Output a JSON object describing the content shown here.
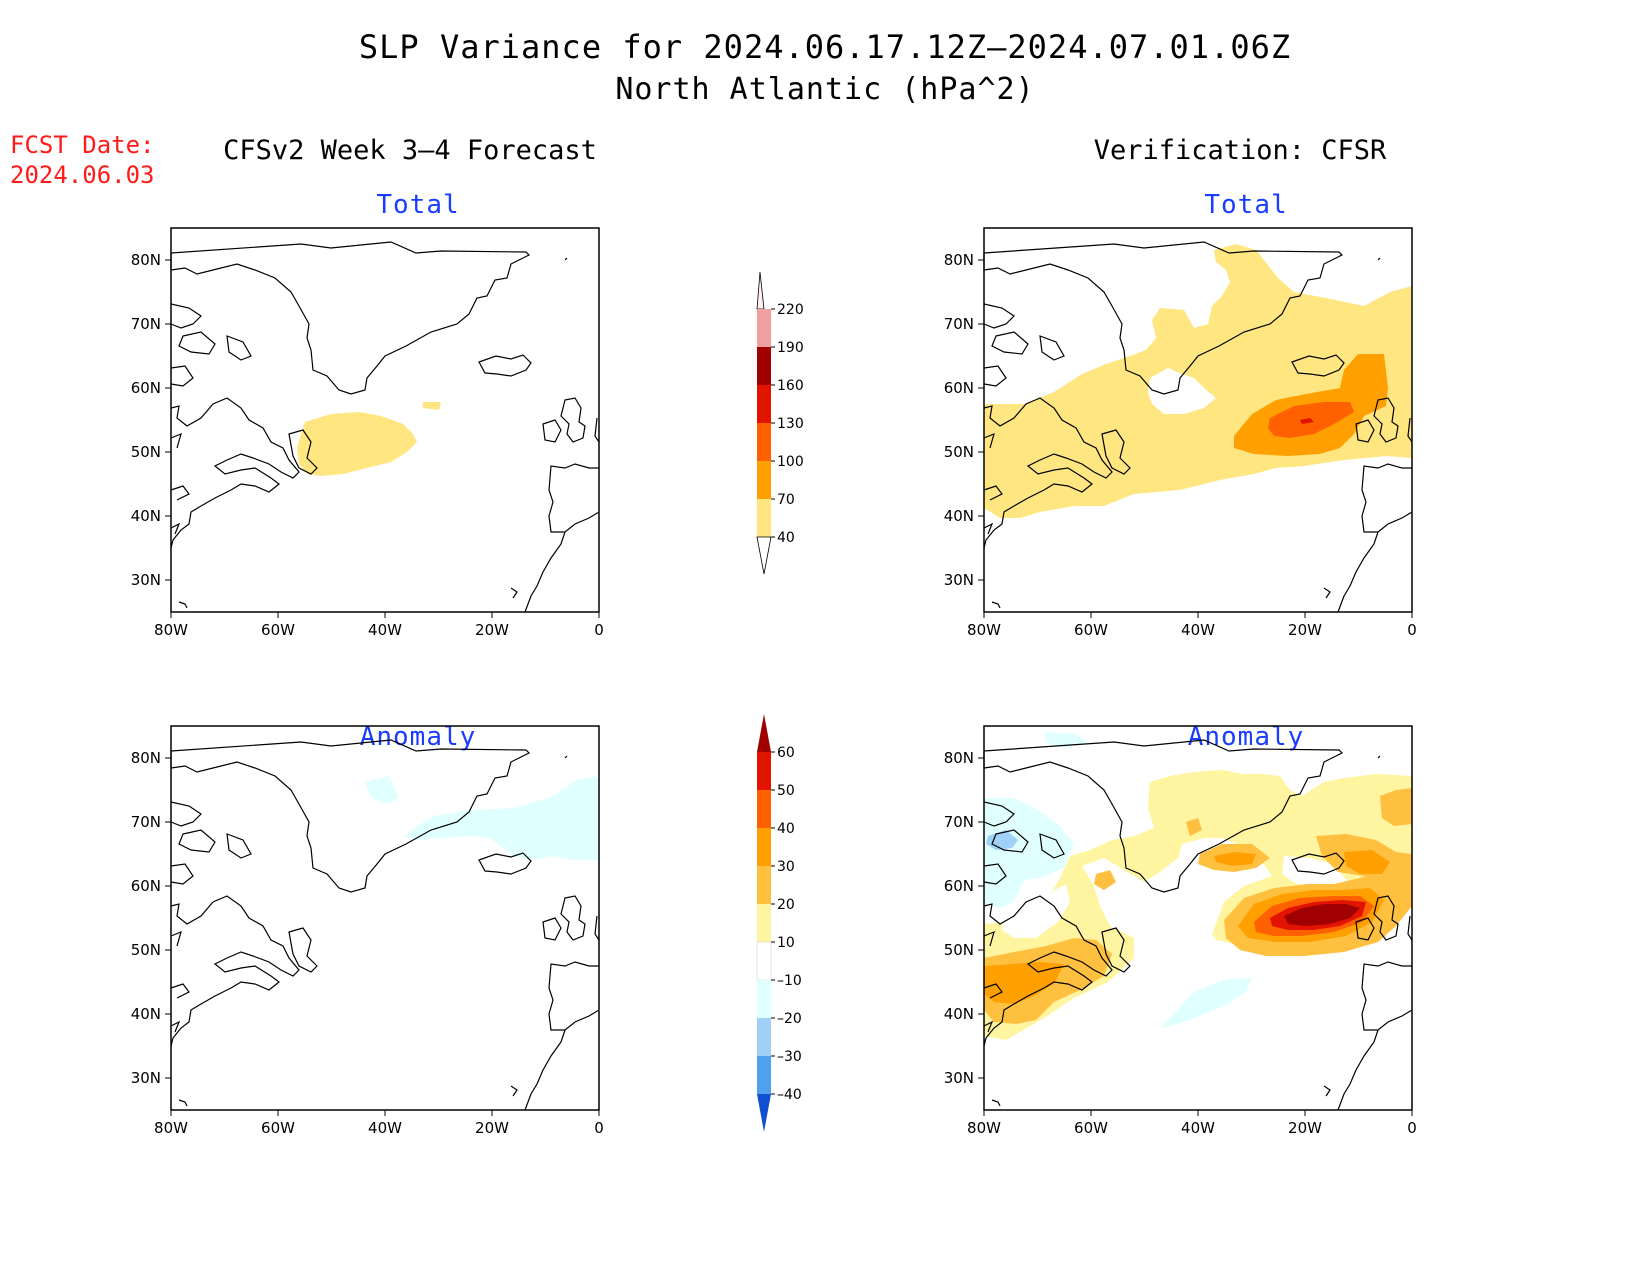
{
  "title": {
    "line1": "SLP Variance for 2024.06.17.12Z–2024.07.01.06Z",
    "line2": "North Atlantic (hPa^2)"
  },
  "fcst_date": {
    "label": "FCST Date:",
    "value": "2024.06.03"
  },
  "left_column": {
    "title": "CFSv2 Week 3–4 Forecast"
  },
  "right_column": {
    "title": "Verification: CFSR"
  },
  "panels": {
    "top_left": {
      "subtitle": "Total"
    },
    "top_right": {
      "subtitle": "Total"
    },
    "bottom_left": {
      "subtitle": "Anomaly"
    },
    "bottom_right": {
      "subtitle": "Anomaly"
    }
  },
  "map_axes": {
    "lat_labels": [
      "80N",
      "70N",
      "60N",
      "50N",
      "40N",
      "30N"
    ],
    "lat_values": [
      80,
      70,
      60,
      50,
      40,
      30
    ],
    "lon_labels": [
      "80W",
      "60W",
      "40W",
      "20W",
      "0"
    ],
    "lon_values": [
      -80,
      -60,
      -40,
      -20,
      0
    ],
    "lon_range": [
      -80,
      0
    ],
    "lat_range": [
      25,
      85
    ]
  },
  "colorbar_total": {
    "levels": [
      "40",
      "70",
      "100",
      "130",
      "160",
      "190",
      "220"
    ],
    "colors": [
      "#ffe680",
      "#ffa000",
      "#ff6000",
      "#e21400",
      "#a00000",
      "#f0a0a0",
      "#ffe6e6"
    ]
  },
  "colorbar_anomaly": {
    "levels": [
      "60",
      "50",
      "40",
      "30",
      "20",
      "10",
      "–10",
      "–20",
      "–30",
      "–40"
    ],
    "colors_top_to_bottom": [
      "#a00000",
      "#e21400",
      "#ff6000",
      "#ffa000",
      "#ffc040",
      "#fff5a0",
      "#ffffff",
      "#e0ffff",
      "#a0d0f8",
      "#50a0f0",
      "#1e6ee8",
      "#1050d0"
    ]
  },
  "palette": {
    "yellow": "#ffe680",
    "orange": "#ffa000",
    "dark_orange": "#ff6000",
    "red": "#e21400",
    "light_yellow": "#fff5a0",
    "light_orange": "#ffc040",
    "light_cyan": "#e0ffff",
    "light_blue": "#a0d0f8",
    "dark_red": "#a00000",
    "subtitle_blue": "#1a3cff",
    "fcst_red": "#ff1a1a"
  }
}
